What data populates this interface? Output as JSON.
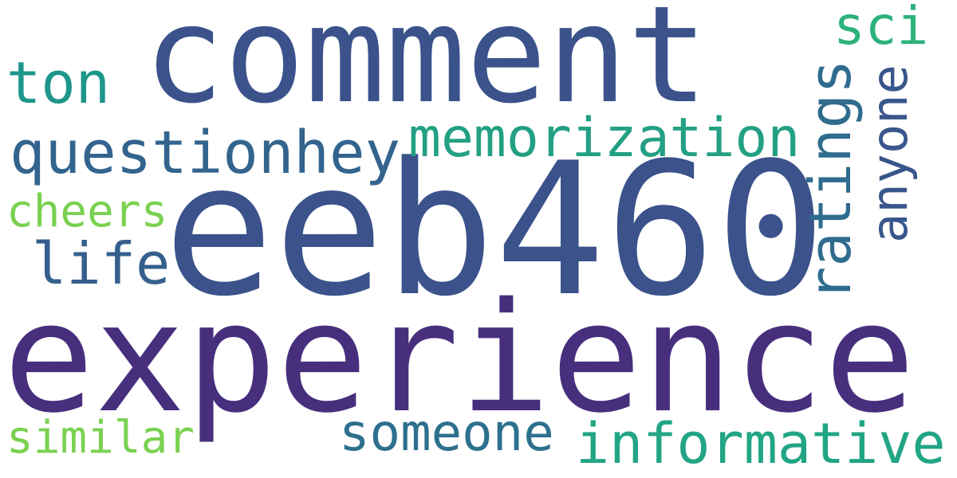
{
  "words": [
    {
      "key": "experience",
      "text": "experience",
      "color": "#472f7d"
    },
    {
      "key": "eeb460",
      "text": "eeb460",
      "color": "#3b528b"
    },
    {
      "key": "comment",
      "text": "comment",
      "color": "#3b528b"
    },
    {
      "key": "memorization",
      "text": "memorization",
      "color": "#23a083"
    },
    {
      "key": "informative",
      "text": "informative",
      "color": "#21a585"
    },
    {
      "key": "questionhey",
      "text": "questionhey",
      "color": "#32648e"
    },
    {
      "key": "ratings",
      "text": "ratings",
      "color": "#2f6c8e"
    },
    {
      "key": "anyone",
      "text": "anyone",
      "color": "#39568c"
    },
    {
      "key": "someone",
      "text": "someone",
      "color": "#2d708e"
    },
    {
      "key": "life",
      "text": "life",
      "color": "#35608d"
    },
    {
      "key": "ton",
      "text": "ton",
      "color": "#1f968b"
    },
    {
      "key": "sci",
      "text": "sci",
      "color": "#2db27d"
    },
    {
      "key": "cheers",
      "text": "cheers",
      "color": "#7ad151"
    },
    {
      "key": "similar",
      "text": "similar",
      "color": "#7ad151"
    }
  ]
}
